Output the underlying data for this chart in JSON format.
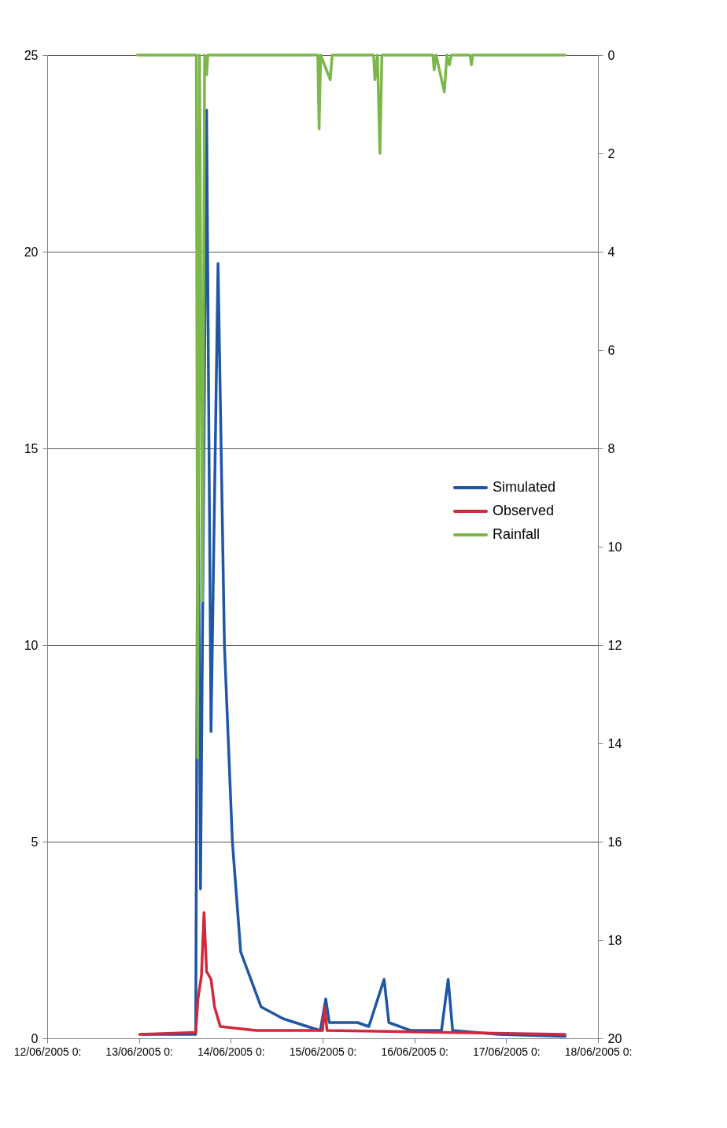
{
  "chart_data": {
    "type": "line",
    "xlim": [
      "2005-06-12T00:00",
      "2005-06-18T00:00"
    ],
    "xticks": [
      {
        "value": "2005-06-12T00:00",
        "label": "12/06/2005 0:"
      },
      {
        "value": "2005-06-13T00:00",
        "label": "13/06/2005 0:"
      },
      {
        "value": "2005-06-14T00:00",
        "label": "14/06/2005 0:"
      },
      {
        "value": "2005-06-15T00:00",
        "label": "15/06/2005 0:"
      },
      {
        "value": "2005-06-16T00:00",
        "label": "16/06/2005 0:"
      },
      {
        "value": "2005-06-17T00:00",
        "label": "17/06/2005 0:"
      },
      {
        "value": "2005-06-18T00:00",
        "label": "18/06/2005 0:"
      }
    ],
    "ylim": [
      0,
      25
    ],
    "yticks": [
      0,
      5,
      10,
      15,
      20,
      25
    ],
    "y2lim": [
      20,
      0
    ],
    "y2ticks": [
      0,
      2,
      4,
      6,
      8,
      10,
      12,
      14,
      16,
      18,
      20
    ],
    "grid": "y",
    "legend": "right",
    "series": [
      {
        "name": "Simulated",
        "color": "#1f56a5",
        "x": [
          "2005-06-13T00:45",
          "2005-06-13T12:00",
          "2005-06-13T14:50",
          "2005-06-13T15:25",
          "2005-06-13T16:05",
          "2005-06-13T17:40",
          "2005-06-13T18:50",
          "2005-06-13T20:40",
          "2005-06-13T22:20",
          "2005-06-14T00:25",
          "2005-06-14T02:35",
          "2005-06-14T07:55",
          "2005-06-14T13:40",
          "2005-06-14T21:40",
          "2005-06-14T23:25",
          "2005-06-15T00:50",
          "2005-06-15T01:45",
          "2005-06-15T09:10",
          "2005-06-15T12:05",
          "2005-06-15T16:05",
          "2005-06-15T17:20",
          "2005-06-15T23:00",
          "2005-06-16T07:05",
          "2005-06-16T08:50",
          "2005-06-16T10:00",
          "2005-06-16T22:05",
          "2005-06-17T15:25"
        ],
        "values": [
          0.1,
          0.1,
          0.1,
          16.1,
          3.8,
          23.6,
          7.8,
          19.7,
          10.0,
          5.0,
          2.2,
          0.8,
          0.5,
          0.25,
          0.2,
          1.0,
          0.4,
          0.4,
          0.3,
          1.5,
          0.4,
          0.2,
          0.2,
          1.5,
          0.2,
          0.1,
          0.05
        ]
      },
      {
        "name": "Observed",
        "color": "#d0283c",
        "x": [
          "2005-06-13T00:10",
          "2005-06-13T14:50",
          "2005-06-13T15:25",
          "2005-06-13T16:20",
          "2005-06-13T17:00",
          "2005-06-13T17:40",
          "2005-06-13T18:50",
          "2005-06-13T19:45",
          "2005-06-13T21:15",
          "2005-06-14T06:40",
          "2005-06-15T00:00",
          "2005-06-15T00:30",
          "2005-06-15T01:10",
          "2005-06-17T15:25"
        ],
        "values": [
          0.1,
          0.15,
          1.0,
          1.6,
          3.2,
          1.7,
          1.5,
          0.8,
          0.3,
          0.2,
          0.2,
          0.8,
          0.2,
          0.1
        ]
      },
      {
        "name": "Rainfall",
        "color": "#7cb749",
        "axis": "y2",
        "x": [
          "2005-06-12T23:35",
          "2005-06-13T15:00",
          "2005-06-13T15:20",
          "2005-06-13T15:50",
          "2005-06-13T16:35",
          "2005-06-13T17:10",
          "2005-06-13T17:40",
          "2005-06-13T18:00",
          "2005-06-14T22:45",
          "2005-06-14T23:05",
          "2005-06-14T23:30",
          "2005-06-15T02:00",
          "2005-06-15T02:30",
          "2005-06-15T13:20",
          "2005-06-15T13:40",
          "2005-06-15T14:20",
          "2005-06-15T15:00",
          "2005-06-15T15:30",
          "2005-06-16T04:50",
          "2005-06-16T05:10",
          "2005-06-16T05:40",
          "2005-06-16T07:50",
          "2005-06-16T08:30",
          "2005-06-16T09:10",
          "2005-06-16T09:40",
          "2005-06-16T14:35",
          "2005-06-16T14:55",
          "2005-06-16T15:15",
          "2005-06-17T15:25"
        ],
        "values": [
          0,
          0,
          14.3,
          0,
          11.1,
          0,
          0.4,
          0,
          0,
          1.5,
          0,
          0.5,
          0,
          0,
          0.5,
          0,
          2.0,
          0,
          0,
          0.3,
          0,
          0.75,
          0,
          0.2,
          0,
          0,
          0.2,
          0,
          0
        ]
      }
    ]
  }
}
